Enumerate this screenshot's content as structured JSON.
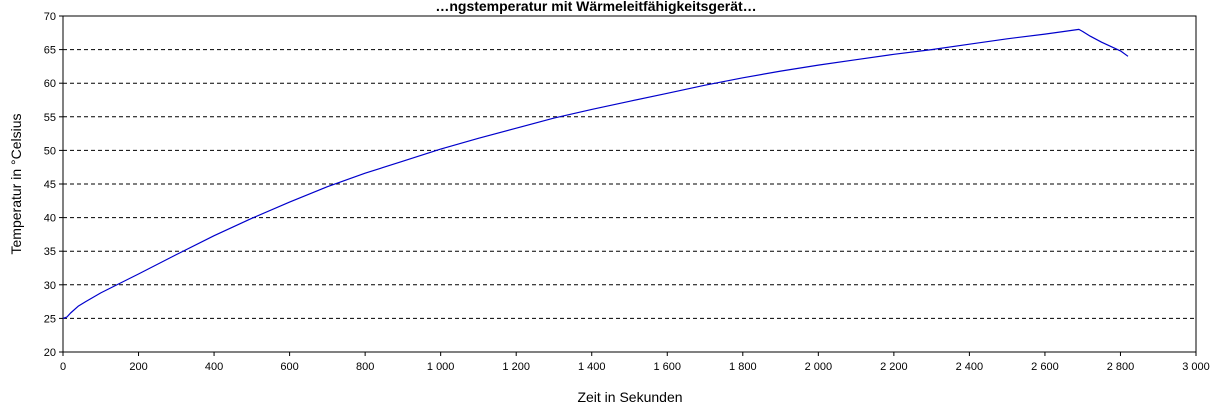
{
  "chart_data": {
    "type": "line",
    "title": "…ngstemperatur mit Wärmeleitfähigkeitsgerät…",
    "xlabel": "Zeit in Sekunden",
    "ylabel": "Temperatur in °Celsius",
    "xlim": [
      0,
      3000
    ],
    "ylim": [
      20,
      70
    ],
    "x_ticks": [
      0,
      200,
      400,
      600,
      800,
      1000,
      1200,
      1400,
      1600,
      1800,
      2000,
      2200,
      2400,
      2600,
      2800,
      3000
    ],
    "x_tick_labels": [
      "0",
      "200",
      "400",
      "600",
      "800",
      "1 000",
      "1 200",
      "1 400",
      "1 600",
      "1 800",
      "2 000",
      "2 200",
      "2 400",
      "2 600",
      "2 800",
      "3 000"
    ],
    "y_ticks": [
      20,
      25,
      30,
      35,
      40,
      45,
      50,
      55,
      60,
      65,
      70
    ],
    "y_tick_labels": [
      "20",
      "25",
      "30",
      "35",
      "40",
      "45",
      "50",
      "55",
      "60",
      "65",
      "70"
    ],
    "grid": {
      "horizontal": true,
      "style": "dashed",
      "vertical": false
    },
    "legend": "none",
    "colors": {
      "line": "#0000cc",
      "grid": "#000000",
      "axis": "#000000",
      "background": "#ffffff"
    },
    "series": [
      {
        "x": [
          0,
          10,
          20,
          40,
          60,
          100,
          200,
          300,
          400,
          500,
          600,
          700,
          800,
          900,
          1000,
          1100,
          1200,
          1300,
          1400,
          1500,
          1600,
          1700,
          1800,
          1900,
          2000,
          2100,
          2200,
          2300,
          2400,
          2500,
          2600,
          2650,
          2690,
          2700,
          2720,
          2750,
          2800,
          2820
        ],
        "y": [
          25,
          25.2,
          25.8,
          26.8,
          27.5,
          28.8,
          31.6,
          34.5,
          37.3,
          39.9,
          42.3,
          44.6,
          46.6,
          48.4,
          50.2,
          51.8,
          53.3,
          54.8,
          56.1,
          57.3,
          58.5,
          59.7,
          60.8,
          61.8,
          62.7,
          63.5,
          64.3,
          65.0,
          65.8,
          66.6,
          67.3,
          67.7,
          68.0,
          67.7,
          67.0,
          66.1,
          64.8,
          64.0
        ]
      }
    ]
  }
}
